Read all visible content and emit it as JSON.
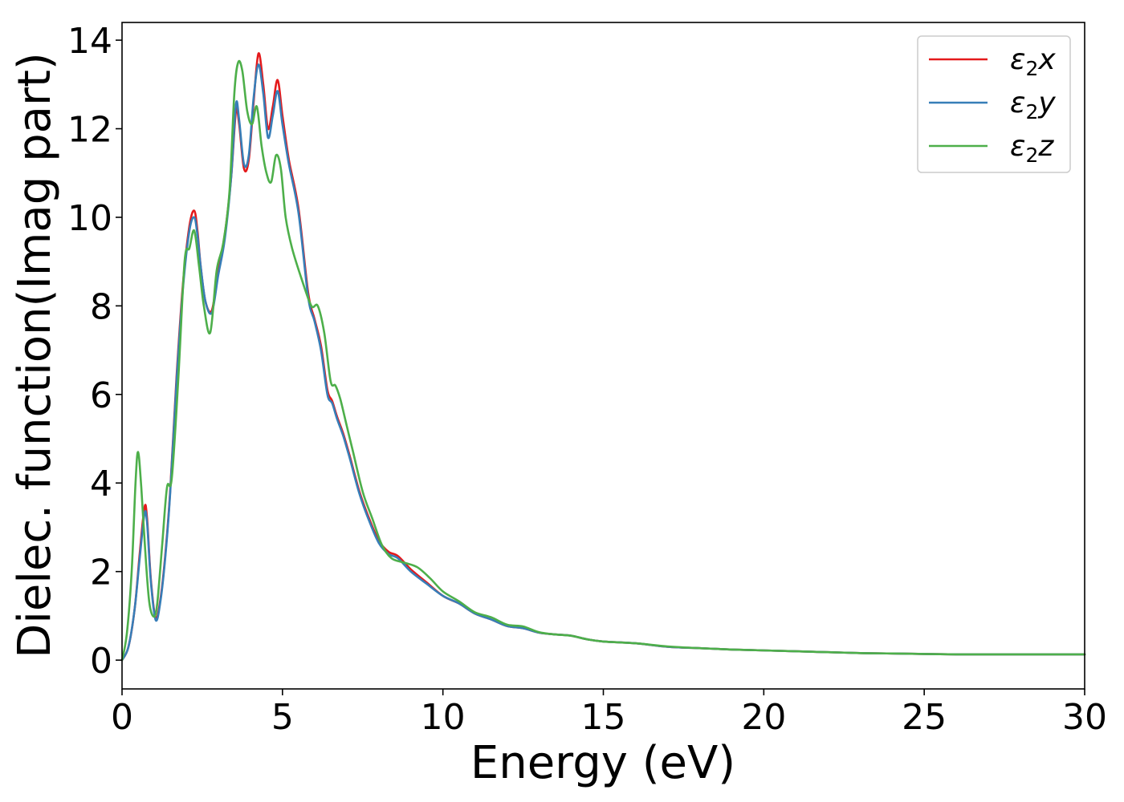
{
  "chart_data": {
    "type": "line",
    "title": "",
    "xlabel": "Energy (eV)",
    "ylabel": "Dielec. function(Imag part)",
    "xlim": [
      0,
      30
    ],
    "ylim": [
      -0.65,
      14.4
    ],
    "xticks": [
      0,
      5,
      10,
      15,
      20,
      25,
      30
    ],
    "yticks": [
      0,
      2,
      4,
      6,
      8,
      10,
      12,
      14
    ],
    "grid": false,
    "legend_position": "top-right",
    "series": [
      {
        "name": "ε₂x",
        "legend_base": "ε",
        "legend_sub": "2",
        "legend_suffix": "x",
        "color": "#e41a1c",
        "x": [
          0,
          0.2,
          0.4,
          0.55,
          0.7,
          0.78,
          0.9,
          1.05,
          1.2,
          1.35,
          1.5,
          1.7,
          1.9,
          2.1,
          2.25,
          2.35,
          2.45,
          2.6,
          2.8,
          3.0,
          3.2,
          3.4,
          3.55,
          3.65,
          3.8,
          3.95,
          4.1,
          4.25,
          4.4,
          4.55,
          4.7,
          4.85,
          5.0,
          5.2,
          5.5,
          5.8,
          6.0,
          6.2,
          6.4,
          6.55,
          6.7,
          6.9,
          7.1,
          7.4,
          7.7,
          8.0,
          8.3,
          8.6,
          9.0,
          9.5,
          10.0,
          10.5,
          11.0,
          11.5,
          12.0,
          12.5,
          13.0,
          13.5,
          14.0,
          14.5,
          15.0,
          16.0,
          17.0,
          18.0,
          19.0,
          20.0,
          21.0,
          22.0,
          23.0,
          24.0,
          25.0,
          26.0,
          27.0,
          28.0,
          29.0,
          30.0
        ],
        "y": [
          0,
          0.3,
          1.2,
          2.4,
          3.45,
          3.2,
          1.8,
          0.95,
          1.4,
          2.4,
          3.8,
          6.4,
          8.5,
          9.8,
          10.15,
          9.7,
          8.9,
          8.1,
          7.9,
          8.8,
          9.6,
          10.9,
          12.4,
          12.1,
          11.1,
          11.3,
          12.6,
          13.7,
          13.0,
          12.0,
          12.5,
          13.1,
          12.3,
          11.3,
          10.2,
          8.3,
          7.7,
          7.1,
          6.1,
          5.85,
          5.5,
          5.1,
          4.6,
          3.8,
          3.2,
          2.7,
          2.45,
          2.35,
          2.05,
          1.75,
          1.45,
          1.28,
          1.05,
          0.92,
          0.77,
          0.72,
          0.62,
          0.58,
          0.55,
          0.47,
          0.42,
          0.38,
          0.3,
          0.27,
          0.24,
          0.22,
          0.2,
          0.18,
          0.16,
          0.15,
          0.14,
          0.13,
          0.13,
          0.13,
          0.13,
          0.13
        ]
      },
      {
        "name": "ε₂y",
        "legend_base": "ε",
        "legend_sub": "2",
        "legend_suffix": "y",
        "color": "#377eb8",
        "x": [
          0,
          0.2,
          0.4,
          0.55,
          0.7,
          0.78,
          0.9,
          1.05,
          1.2,
          1.35,
          1.5,
          1.7,
          1.9,
          2.1,
          2.25,
          2.35,
          2.45,
          2.6,
          2.8,
          3.0,
          3.2,
          3.4,
          3.55,
          3.65,
          3.8,
          3.95,
          4.1,
          4.25,
          4.4,
          4.55,
          4.7,
          4.85,
          5.0,
          5.2,
          5.5,
          5.8,
          6.0,
          6.2,
          6.4,
          6.55,
          6.7,
          6.9,
          7.1,
          7.4,
          7.7,
          8.0,
          8.3,
          8.6,
          9.0,
          9.5,
          10.0,
          10.5,
          11.0,
          11.5,
          12.0,
          12.5,
          13.0,
          13.5,
          14.0,
          14.5,
          15.0,
          16.0,
          17.0,
          18.0,
          19.0,
          20.0,
          21.0,
          22.0,
          23.0,
          24.0,
          25.0,
          26.0,
          27.0,
          28.0,
          29.0,
          30.0
        ],
        "y": [
          0,
          0.3,
          1.2,
          2.3,
          3.3,
          3.1,
          1.75,
          0.9,
          1.35,
          2.35,
          3.75,
          6.3,
          8.4,
          9.7,
          10.0,
          9.6,
          8.9,
          8.1,
          7.85,
          8.7,
          9.5,
          10.9,
          12.55,
          12.2,
          11.2,
          11.4,
          12.7,
          13.45,
          12.8,
          11.8,
          12.3,
          12.85,
          12.1,
          11.2,
          10.1,
          8.2,
          7.65,
          7.0,
          6.0,
          5.8,
          5.45,
          5.05,
          4.55,
          3.75,
          3.15,
          2.65,
          2.4,
          2.3,
          2.0,
          1.72,
          1.45,
          1.28,
          1.05,
          0.92,
          0.77,
          0.72,
          0.62,
          0.58,
          0.55,
          0.47,
          0.42,
          0.38,
          0.3,
          0.27,
          0.24,
          0.22,
          0.2,
          0.18,
          0.16,
          0.15,
          0.14,
          0.13,
          0.13,
          0.13,
          0.13,
          0.13
        ]
      },
      {
        "name": "ε₂z",
        "legend_base": "ε",
        "legend_sub": "2",
        "legend_suffix": "z",
        "color": "#4daf4a",
        "x": [
          0,
          0.15,
          0.3,
          0.42,
          0.5,
          0.6,
          0.72,
          0.85,
          1.0,
          1.1,
          1.25,
          1.4,
          1.55,
          1.75,
          1.95,
          2.1,
          2.25,
          2.4,
          2.55,
          2.75,
          2.95,
          3.15,
          3.35,
          3.5,
          3.62,
          3.75,
          3.9,
          4.05,
          4.2,
          4.35,
          4.5,
          4.65,
          4.8,
          4.95,
          5.1,
          5.3,
          5.6,
          5.9,
          6.1,
          6.3,
          6.5,
          6.65,
          6.8,
          7.0,
          7.2,
          7.5,
          7.8,
          8.1,
          8.4,
          8.8,
          9.2,
          9.6,
          10.0,
          10.5,
          11.0,
          11.5,
          12.0,
          12.5,
          13.0,
          13.5,
          14.0,
          14.5,
          15.0,
          16.0,
          17.0,
          18.0,
          19.0,
          20.0,
          21.0,
          22.0,
          23.0,
          24.0,
          25.0,
          26.0,
          27.0,
          28.0,
          29.0,
          30.0
        ],
        "y": [
          0,
          0.6,
          2.0,
          4.0,
          4.7,
          3.9,
          2.5,
          1.3,
          0.98,
          1.3,
          2.6,
          3.9,
          4.1,
          6.3,
          9.0,
          9.3,
          9.7,
          8.9,
          8.0,
          7.4,
          8.8,
          9.4,
          10.6,
          12.8,
          13.5,
          13.3,
          12.4,
          12.1,
          12.5,
          11.6,
          11.0,
          10.8,
          11.4,
          11.1,
          10.0,
          9.3,
          8.6,
          8.0,
          8.0,
          7.4,
          6.3,
          6.2,
          5.9,
          5.3,
          4.7,
          3.8,
          3.2,
          2.6,
          2.3,
          2.2,
          2.1,
          1.85,
          1.55,
          1.33,
          1.08,
          0.97,
          0.8,
          0.76,
          0.63,
          0.58,
          0.55,
          0.47,
          0.42,
          0.38,
          0.31,
          0.27,
          0.24,
          0.22,
          0.2,
          0.18,
          0.16,
          0.15,
          0.14,
          0.13,
          0.13,
          0.13,
          0.13,
          0.13
        ]
      }
    ]
  }
}
